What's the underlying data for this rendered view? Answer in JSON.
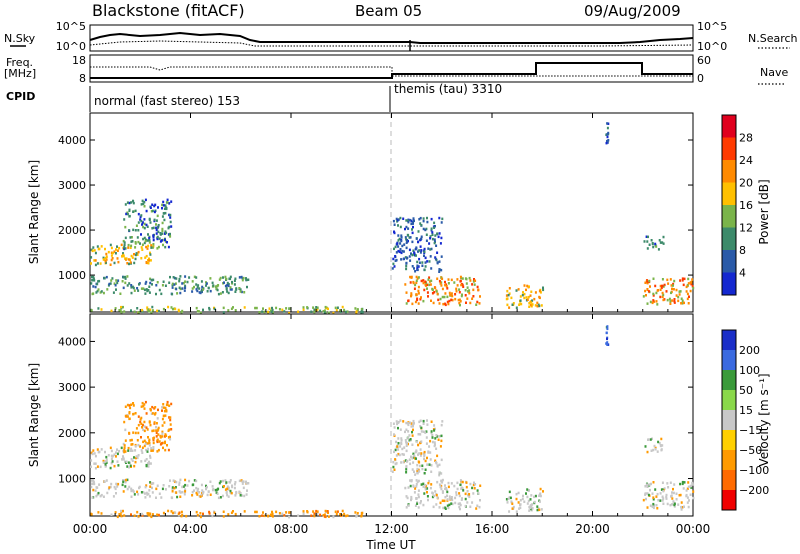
{
  "header": {
    "station": "Blackstone (fitACF)",
    "beam": "Beam 05",
    "date": "09/Aug/2009"
  },
  "side_labels": {
    "nsky": "N.Sky",
    "nsearch": "N.Search",
    "freq_line1": "Freq.",
    "freq_line2": "[MHz]",
    "nave": "Nave",
    "cpid": "CPID"
  },
  "noise_axis": {
    "left_ticks": [
      "10^5",
      "10^0"
    ],
    "right_ticks": [
      "10^5",
      "10^0"
    ]
  },
  "freq_axis": {
    "left_ticks": [
      "18",
      "8"
    ],
    "right_ticks": [
      "60",
      "0"
    ],
    "left_range": [
      8,
      18
    ],
    "right_range": [
      0,
      60
    ]
  },
  "cpid_segments": [
    {
      "label": "normal (fast stereo) 153",
      "start_hour": 0,
      "end_hour": 12
    },
    {
      "label": "themis (tau) 3310",
      "start_hour": 12,
      "end_hour": 24
    }
  ],
  "colorbar_power": {
    "label": "Power [dB]",
    "ticks": [
      "28",
      "24",
      "20",
      "16",
      "12",
      "8",
      "4"
    ],
    "colors": [
      "#e0001e",
      "#ff3a00",
      "#ff8a00",
      "#ffc000",
      "#7ab44a",
      "#3c8a6a",
      "#2a5aa8",
      "#1428d0"
    ]
  },
  "colorbar_velocity": {
    "label": "Velocity [m s⁻¹]",
    "ticks": [
      "200",
      "100",
      "50",
      "15",
      "−15",
      "−50",
      "−100",
      "−200"
    ],
    "colors": [
      "#1a2ec8",
      "#3a6ae0",
      "#3a9a3a",
      "#8ad84a",
      "#c8c8c8",
      "#ffd000",
      "#ff9a00",
      "#ff6a00",
      "#f00000"
    ]
  },
  "chart_data": [
    {
      "type": "heatmap",
      "panel": "power",
      "ylabel": "Slant Range [km]",
      "ylim": [
        180,
        4600
      ],
      "y_ticks": [
        "4000",
        "3000",
        "2000",
        "1000"
      ],
      "xlim": [
        0,
        24
      ],
      "x_tick_labels": [
        "00:00",
        "04:00",
        "08:00",
        "12:00",
        "16:00",
        "20:00",
        "00:00"
      ],
      "regions": [
        {
          "t0": 0.0,
          "t1": 2.5,
          "r0": 1250,
          "r1": 1700,
          "value": 18
        },
        {
          "t0": 1.3,
          "t1": 3.2,
          "r0": 1600,
          "r1": 2700,
          "value": 10
        },
        {
          "t0": 0.0,
          "t1": 6.3,
          "r0": 600,
          "r1": 1000,
          "value": 12
        },
        {
          "t0": 0.0,
          "t1": 11.0,
          "r0": 180,
          "r1": 320,
          "value": 16
        },
        {
          "t0": 12.5,
          "t1": 15.5,
          "r0": 350,
          "r1": 1000,
          "value": 22
        },
        {
          "t0": 16.5,
          "t1": 18.0,
          "r0": 300,
          "r1": 800,
          "value": 18
        },
        {
          "t0": 12.0,
          "t1": 14.0,
          "r0": 1100,
          "r1": 2300,
          "value": 8
        },
        {
          "t0": 22.0,
          "t1": 24.0,
          "r0": 350,
          "r1": 950,
          "value": 22
        },
        {
          "t0": 22.0,
          "t1": 22.8,
          "r0": 1600,
          "r1": 1900,
          "value": 10
        },
        {
          "t0": 20.5,
          "t1": 20.6,
          "r0": 3950,
          "r1": 4400,
          "value": 6
        }
      ]
    },
    {
      "type": "heatmap",
      "panel": "velocity",
      "ylabel": "Slant Range [km]",
      "ylim": [
        180,
        4600
      ],
      "y_ticks": [
        "4000",
        "3000",
        "2000",
        "1000"
      ],
      "xlim": [
        0,
        24
      ],
      "x_tick_labels": [
        "00:00",
        "04:00",
        "08:00",
        "12:00",
        "16:00",
        "20:00",
        "00:00"
      ],
      "xlabel": "Time UT",
      "regions": [
        {
          "t0": 0.0,
          "t1": 2.5,
          "r0": 1250,
          "r1": 1700,
          "value": 0
        },
        {
          "t0": 1.3,
          "t1": 3.2,
          "r0": 1600,
          "r1": 2700,
          "value": -60
        },
        {
          "t0": 0.0,
          "t1": 6.3,
          "r0": 600,
          "r1": 1000,
          "value": 0
        },
        {
          "t0": 0.0,
          "t1": 11.0,
          "r0": 180,
          "r1": 320,
          "value": -60
        },
        {
          "t0": 12.5,
          "t1": 15.5,
          "r0": 350,
          "r1": 1000,
          "value": 0
        },
        {
          "t0": 16.5,
          "t1": 18.0,
          "r0": 300,
          "r1": 800,
          "value": 0
        },
        {
          "t0": 12.0,
          "t1": 14.0,
          "r0": 1100,
          "r1": 2300,
          "value": 0
        },
        {
          "t0": 22.0,
          "t1": 24.0,
          "r0": 350,
          "r1": 950,
          "value": 0
        },
        {
          "t0": 22.0,
          "t1": 22.8,
          "r0": 1600,
          "r1": 1900,
          "value": 0
        },
        {
          "t0": 20.5,
          "t1": 20.6,
          "r0": 3950,
          "r1": 4400,
          "value": 150
        }
      ]
    }
  ]
}
